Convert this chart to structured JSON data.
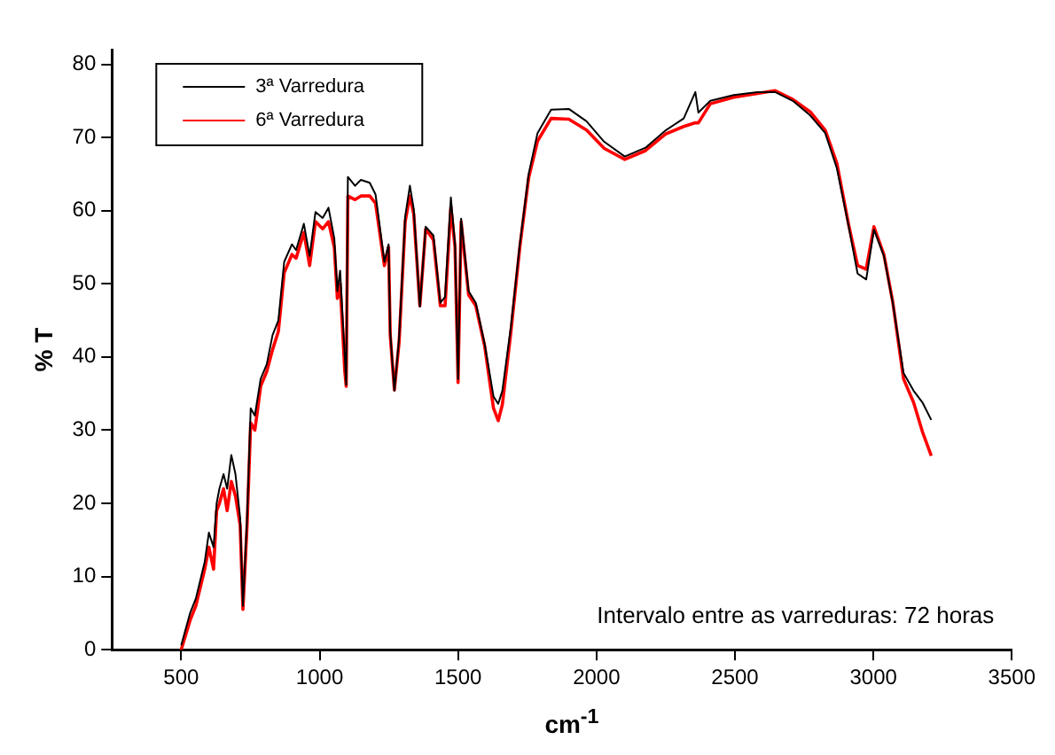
{
  "chart_data": {
    "type": "line",
    "xlabel": "cm$^{-1}$",
    "ylabel": "% T",
    "annotations": [
      "Intervalo entre as varreduras: 72 horas"
    ],
    "legend": "top left",
    "grid": false,
    "marker": "none",
    "line_style": "solid",
    "xlim": [
      250,
      3500
    ],
    "xticks": [
      500,
      1000,
      1500,
      2000,
      2500,
      3000,
      3500
    ],
    "ylim": [
      0,
      82
    ],
    "yticks": [
      0,
      10,
      20,
      30,
      40,
      50,
      60,
      70,
      80
    ],
    "x": [
      500,
      532,
      553,
      585,
      600,
      617,
      628,
      638,
      653,
      666,
      681,
      696,
      713,
      723,
      738,
      751,
      766,
      787,
      809,
      830,
      851,
      872,
      900,
      915,
      943,
      964,
      985,
      1011,
      1032,
      1053,
      1064,
      1074,
      1091,
      1096,
      1102,
      1128,
      1149,
      1181,
      1202,
      1234,
      1249,
      1255,
      1270,
      1287,
      1309,
      1326,
      1340,
      1362,
      1383,
      1411,
      1436,
      1453,
      1474,
      1489,
      1500,
      1511,
      1538,
      1564,
      1596,
      1628,
      1645,
      1660,
      1691,
      1723,
      1755,
      1787,
      1836,
      1900,
      1964,
      2028,
      2102,
      2177,
      2251,
      2315,
      2357,
      2368,
      2411,
      2496,
      2581,
      2645,
      2709,
      2772,
      2826,
      2868,
      2911,
      2943,
      2974,
      3002,
      3038,
      3070,
      3109,
      3145,
      3177,
      3209
    ],
    "series": [
      {
        "name": "3ª Varredura",
        "color": "#000000",
        "values": [
          0.6,
          5,
          7,
          12,
          16,
          14,
          20,
          22,
          24,
          22,
          26.6,
          24,
          18,
          6,
          18,
          33,
          32,
          37,
          39,
          43,
          45,
          53,
          55.4,
          54.6,
          58.2,
          53.8,
          59.8,
          59,
          60.4,
          56.2,
          49,
          51.8,
          40,
          36.2,
          64.6,
          63.4,
          64.2,
          63.8,
          62.2,
          53,
          55.4,
          43.4,
          35.4,
          42.6,
          59.2,
          63.4,
          60.2,
          46.9,
          57.8,
          56.6,
          47.4,
          48.2,
          61.8,
          55.4,
          37,
          58.9,
          49,
          47.4,
          41.8,
          34.6,
          33.6,
          35.4,
          44.2,
          55.4,
          65,
          70.6,
          73.8,
          73.9,
          72.2,
          69.4,
          67.4,
          68.6,
          71,
          72.6,
          76.2,
          73.4,
          75,
          75.8,
          76.2,
          76.2,
          75,
          73,
          70.6,
          65.8,
          57.8,
          51.4,
          50.6,
          57.4,
          53.8,
          47.4,
          37.8,
          35.4,
          33.8,
          31.4
        ]
      },
      {
        "name": "6ª Varredura",
        "color": "#ff0000",
        "values": [
          0,
          4,
          6,
          11,
          14,
          11,
          19,
          20,
          22,
          19,
          23,
          21,
          17,
          5.5,
          17,
          31,
          30,
          36,
          38,
          41,
          43.5,
          51.5,
          54,
          53.5,
          57,
          52.5,
          58.5,
          57.5,
          58.5,
          55,
          48,
          50,
          38,
          36,
          62,
          61.5,
          62,
          62,
          61,
          52.5,
          55,
          43,
          35.5,
          42,
          58.5,
          62,
          59.5,
          47,
          57.5,
          56,
          47,
          47,
          60.5,
          55,
          36.5,
          58.5,
          48.5,
          47,
          41.5,
          33,
          31.3,
          33.5,
          43.5,
          55,
          64.5,
          69.5,
          72.6,
          72.5,
          71,
          68.5,
          67,
          68.2,
          70.5,
          71.5,
          72,
          72,
          74.6,
          75.5,
          76,
          76.4,
          75.2,
          73.5,
          71,
          66.5,
          58,
          52.5,
          52,
          57.8,
          54,
          47.5,
          37,
          33.8,
          29.8,
          26.5
        ]
      }
    ]
  }
}
